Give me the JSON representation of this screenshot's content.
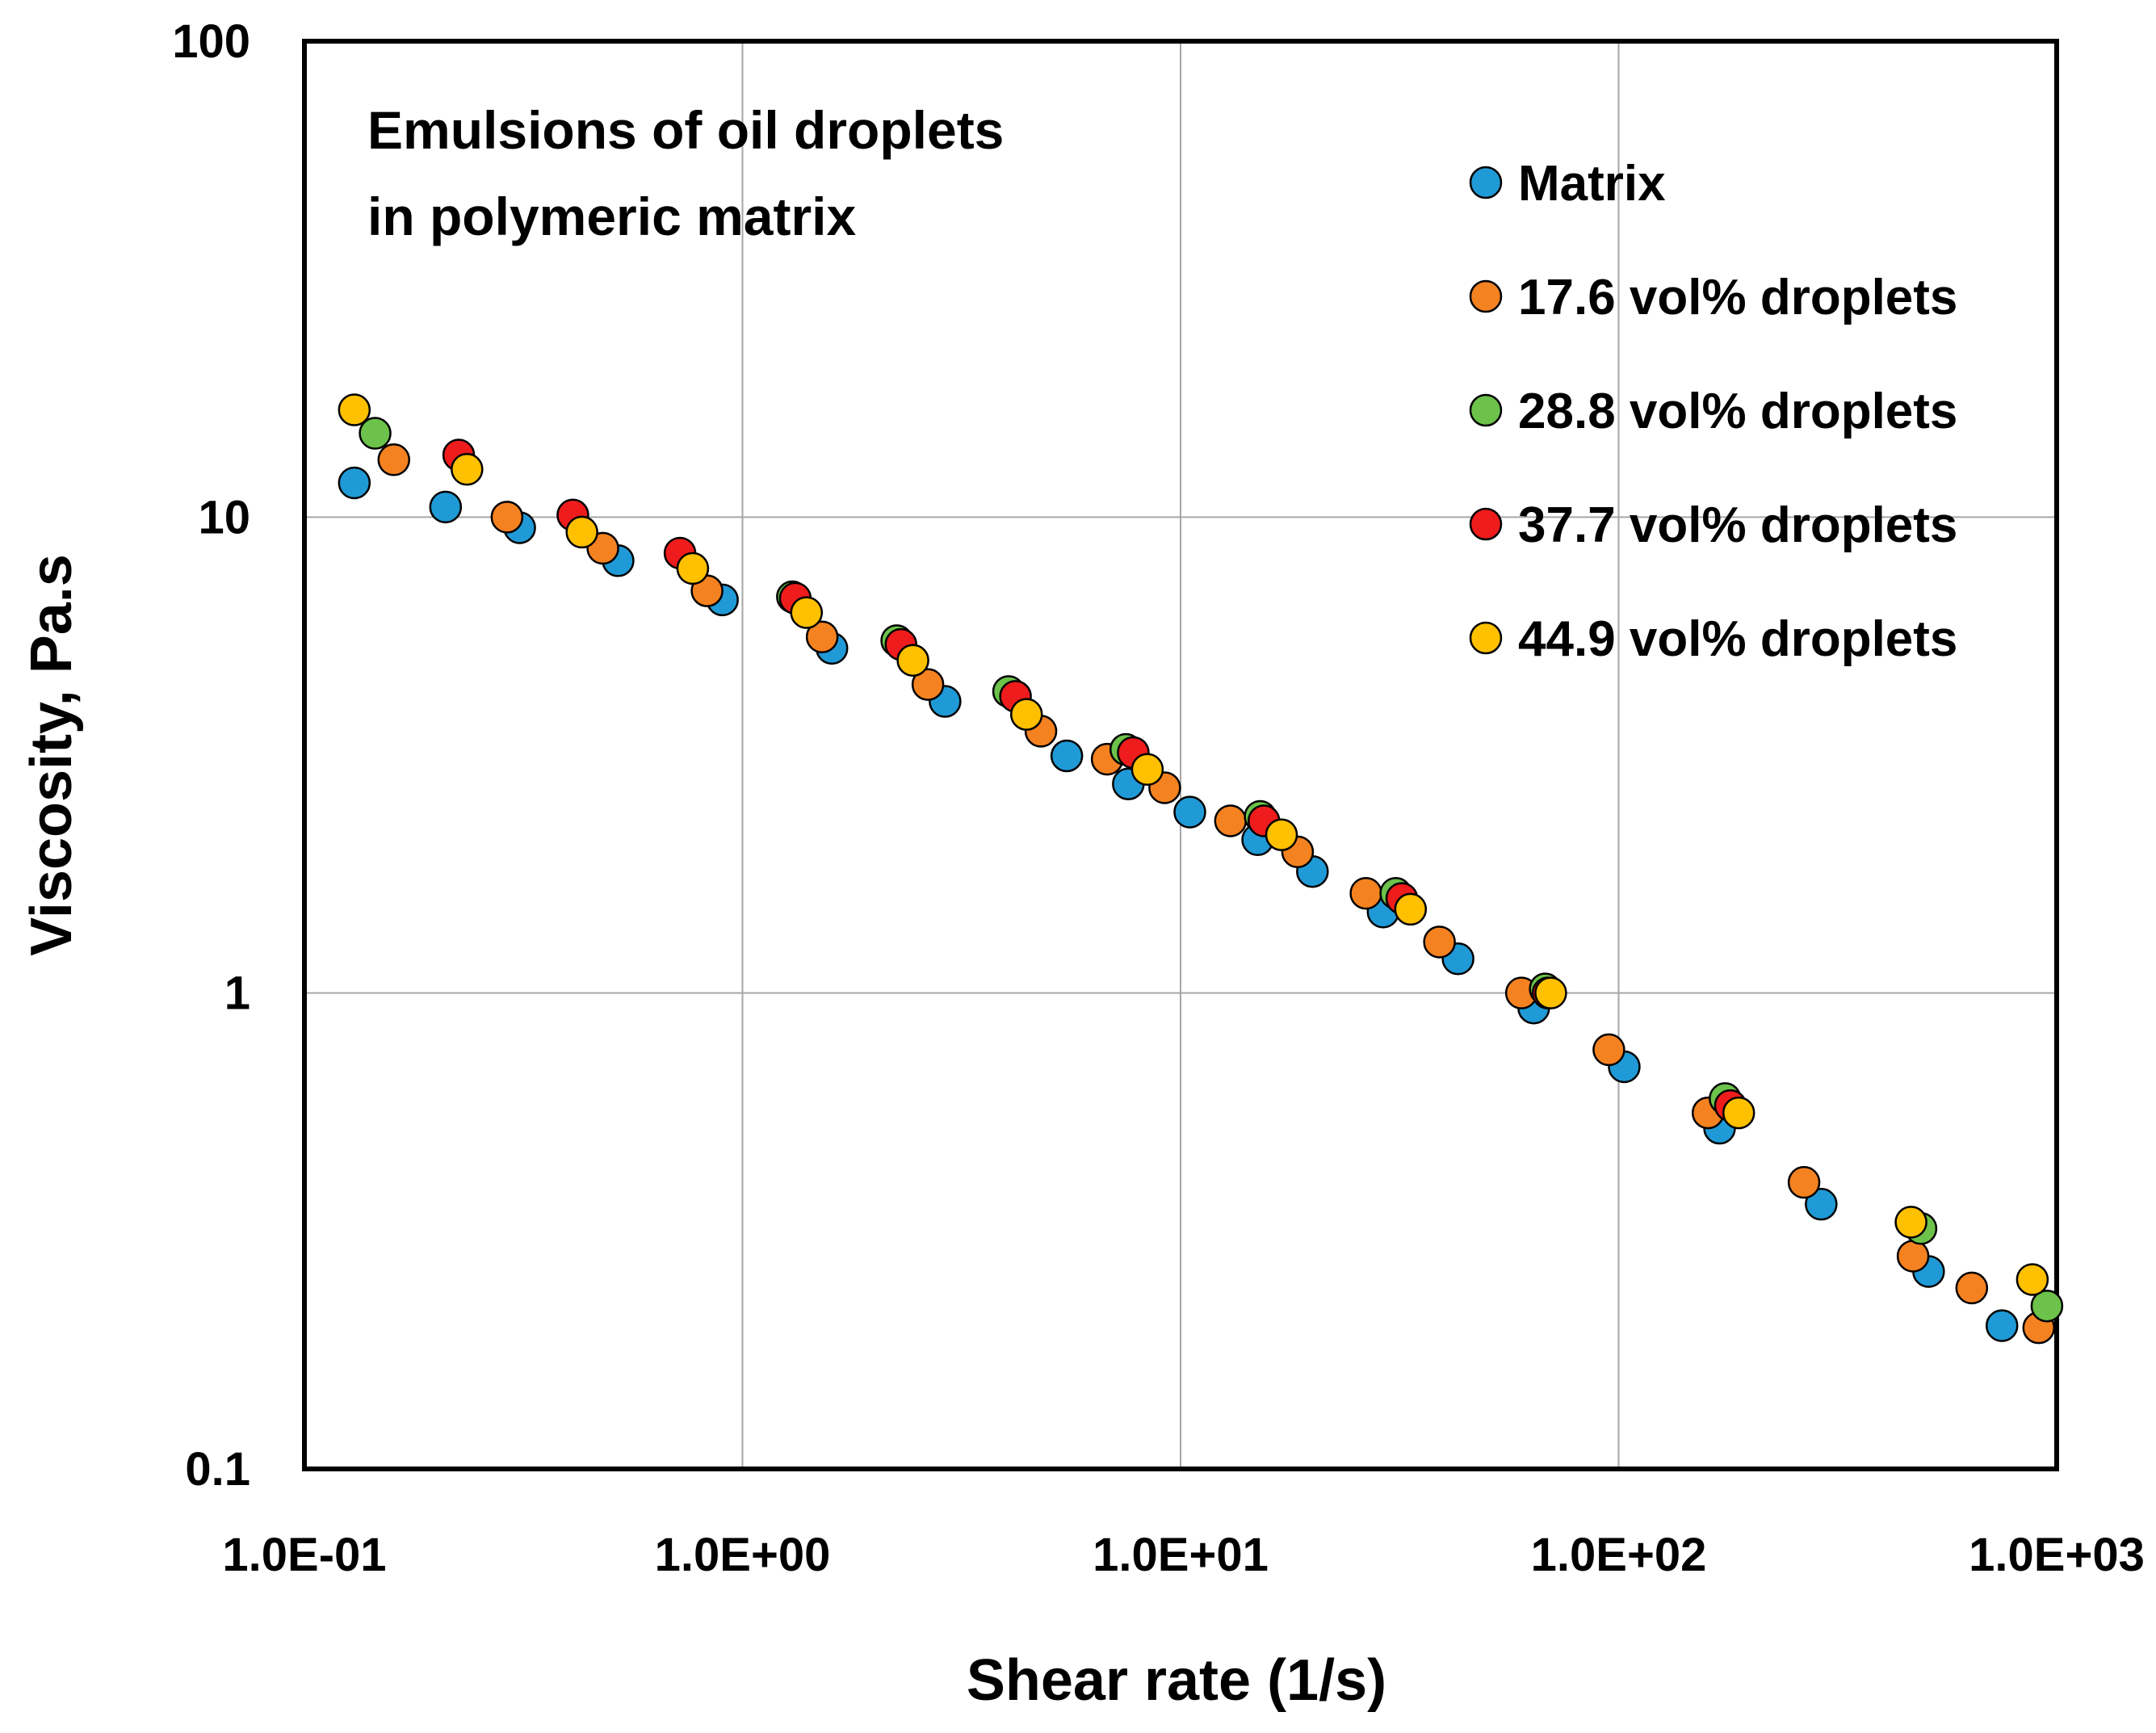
{
  "chart_data": {
    "type": "scatter",
    "title": "Emulsions of oil droplets in polymeric matrix",
    "title_lines": [
      "Emulsions of oil droplets",
      "in polymeric matrix"
    ],
    "xlabel": "Shear rate (1/s)",
    "ylabel": "Viscosity, Pa.s",
    "xscale": "log",
    "yscale": "log",
    "xlim": [
      0.1,
      1000
    ],
    "ylim": [
      0.1,
      100
    ],
    "x_tick_labels": [
      "1.0E-01",
      "1.0E+00",
      "1.0E+01",
      "1.0E+02",
      "1.0E+03"
    ],
    "x_tick_values": [
      0.1,
      1,
      10,
      100,
      1000
    ],
    "y_tick_labels": [
      "0.1",
      "1",
      "10",
      "100"
    ],
    "y_tick_values": [
      0.1,
      1,
      10,
      100
    ],
    "grid": true,
    "legend_position": "top-right",
    "series": [
      {
        "name": "Matrix",
        "color": "#1f9ad6",
        "points": [
          [
            0.13,
            11.8
          ],
          [
            0.21,
            10.5
          ],
          [
            0.31,
            9.5
          ],
          [
            0.52,
            8.1
          ],
          [
            0.9,
            6.7
          ],
          [
            1.6,
            5.3
          ],
          [
            2.9,
            4.1
          ],
          [
            5.5,
            3.15
          ],
          [
            7.6,
            2.75
          ],
          [
            10.5,
            2.4
          ],
          [
            15,
            2.1
          ],
          [
            20,
            1.8
          ],
          [
            29,
            1.48
          ],
          [
            43,
            1.18
          ],
          [
            64,
            0.93
          ],
          [
            103,
            0.7
          ],
          [
            170,
            0.52
          ],
          [
            290,
            0.36
          ],
          [
            510,
            0.26
          ],
          [
            750,
            0.2
          ]
        ]
      },
      {
        "name": "17.6 vol% droplets",
        "color": "#f58220",
        "points": [
          [
            0.16,
            13.2
          ],
          [
            0.29,
            10.0
          ],
          [
            0.48,
            8.6
          ],
          [
            0.83,
            7.0
          ],
          [
            1.52,
            5.6
          ],
          [
            2.65,
            4.45
          ],
          [
            4.8,
            3.55
          ],
          [
            6.8,
            3.1
          ],
          [
            9.2,
            2.7
          ],
          [
            13,
            2.3
          ],
          [
            18.5,
            1.98
          ],
          [
            26.5,
            1.62
          ],
          [
            39,
            1.28
          ],
          [
            60,
            1.0
          ],
          [
            95,
            0.76
          ],
          [
            160,
            0.56
          ],
          [
            265,
            0.4
          ],
          [
            470,
            0.28
          ],
          [
            640,
            0.24
          ],
          [
            910,
            0.198
          ]
        ]
      },
      {
        "name": "28.8 vol% droplets",
        "color": "#6cc24a",
        "points": [
          [
            0.145,
            15.0
          ],
          [
            1.3,
            6.8
          ],
          [
            2.25,
            5.5
          ],
          [
            4.05,
            4.3
          ],
          [
            7.5,
            3.25
          ],
          [
            15.2,
            2.35
          ],
          [
            31,
            1.62
          ],
          [
            68,
            1.02
          ],
          [
            175,
            0.6
          ],
          [
            490,
            0.32
          ],
          [
            950,
            0.22
          ]
        ]
      },
      {
        "name": "37.7 vol% droplets",
        "color": "#ee1c1c",
        "points": [
          [
            0.225,
            13.5
          ],
          [
            0.41,
            10.1
          ],
          [
            0.72,
            8.4
          ],
          [
            1.32,
            6.75
          ],
          [
            2.3,
            5.4
          ],
          [
            4.2,
            4.2
          ],
          [
            7.8,
            3.2
          ],
          [
            15.5,
            2.3
          ],
          [
            32,
            1.58
          ],
          [
            69,
            1.0
          ],
          [
            180,
            0.58
          ]
        ]
      },
      {
        "name": "44.9 vol% droplets",
        "color": "#ffc000",
        "points": [
          [
            0.13,
            16.8
          ],
          [
            0.235,
            12.6
          ],
          [
            0.43,
            9.3
          ],
          [
            0.77,
            7.8
          ],
          [
            1.4,
            6.3
          ],
          [
            2.45,
            5.0
          ],
          [
            4.45,
            3.85
          ],
          [
            8.4,
            2.95
          ],
          [
            17,
            2.15
          ],
          [
            33.5,
            1.5
          ],
          [
            70,
            1.0
          ],
          [
            188,
            0.56
          ],
          [
            465,
            0.33
          ],
          [
            880,
            0.25
          ]
        ]
      }
    ]
  }
}
